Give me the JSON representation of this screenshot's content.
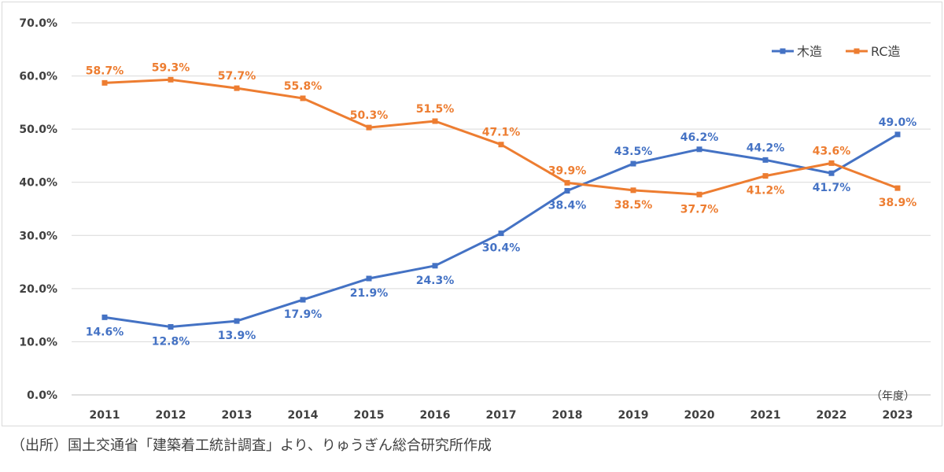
{
  "source_note": "（出所）国土交通省「建築着工統計調査」より、りゅうぎん総合研究所作成",
  "chart_data": {
    "type": "line",
    "title": "",
    "xlabel": "（年度）",
    "ylabel": "",
    "ylim": [
      0,
      70
    ],
    "y_ticks": [
      "0.0%",
      "10.0%",
      "20.0%",
      "30.0%",
      "40.0%",
      "50.0%",
      "60.0%",
      "70.0%"
    ],
    "y_tick_values": [
      0,
      10,
      20,
      30,
      40,
      50,
      60,
      70
    ],
    "categories": [
      "2011",
      "2012",
      "2013",
      "2014",
      "2015",
      "2016",
      "2017",
      "2018",
      "2019",
      "2020",
      "2021",
      "2022",
      "2023"
    ],
    "grid": "horizontal",
    "legend_position": "top-right",
    "series": [
      {
        "name": "木造",
        "color": "#4472c4",
        "values": [
          14.6,
          12.8,
          13.9,
          17.9,
          21.9,
          24.3,
          30.4,
          38.4,
          43.5,
          46.2,
          44.2,
          41.7,
          49.0
        ],
        "labels": [
          "14.6%",
          "12.8%",
          "13.9%",
          "17.9%",
          "21.9%",
          "24.3%",
          "30.4%",
          "38.4%",
          "43.5%",
          "46.2%",
          "44.2%",
          "41.7%",
          "49.0%"
        ]
      },
      {
        "name": "RC造",
        "color": "#ed7d31",
        "values": [
          58.7,
          59.3,
          57.7,
          55.8,
          50.3,
          51.5,
          47.1,
          39.9,
          38.5,
          37.7,
          41.2,
          43.6,
          38.9
        ],
        "labels": [
          "58.7%",
          "59.3%",
          "57.7%",
          "55.8%",
          "50.3%",
          "51.5%",
          "47.1%",
          "39.9%",
          "38.5%",
          "37.7%",
          "41.2%",
          "43.6%",
          "38.9%"
        ]
      }
    ]
  }
}
